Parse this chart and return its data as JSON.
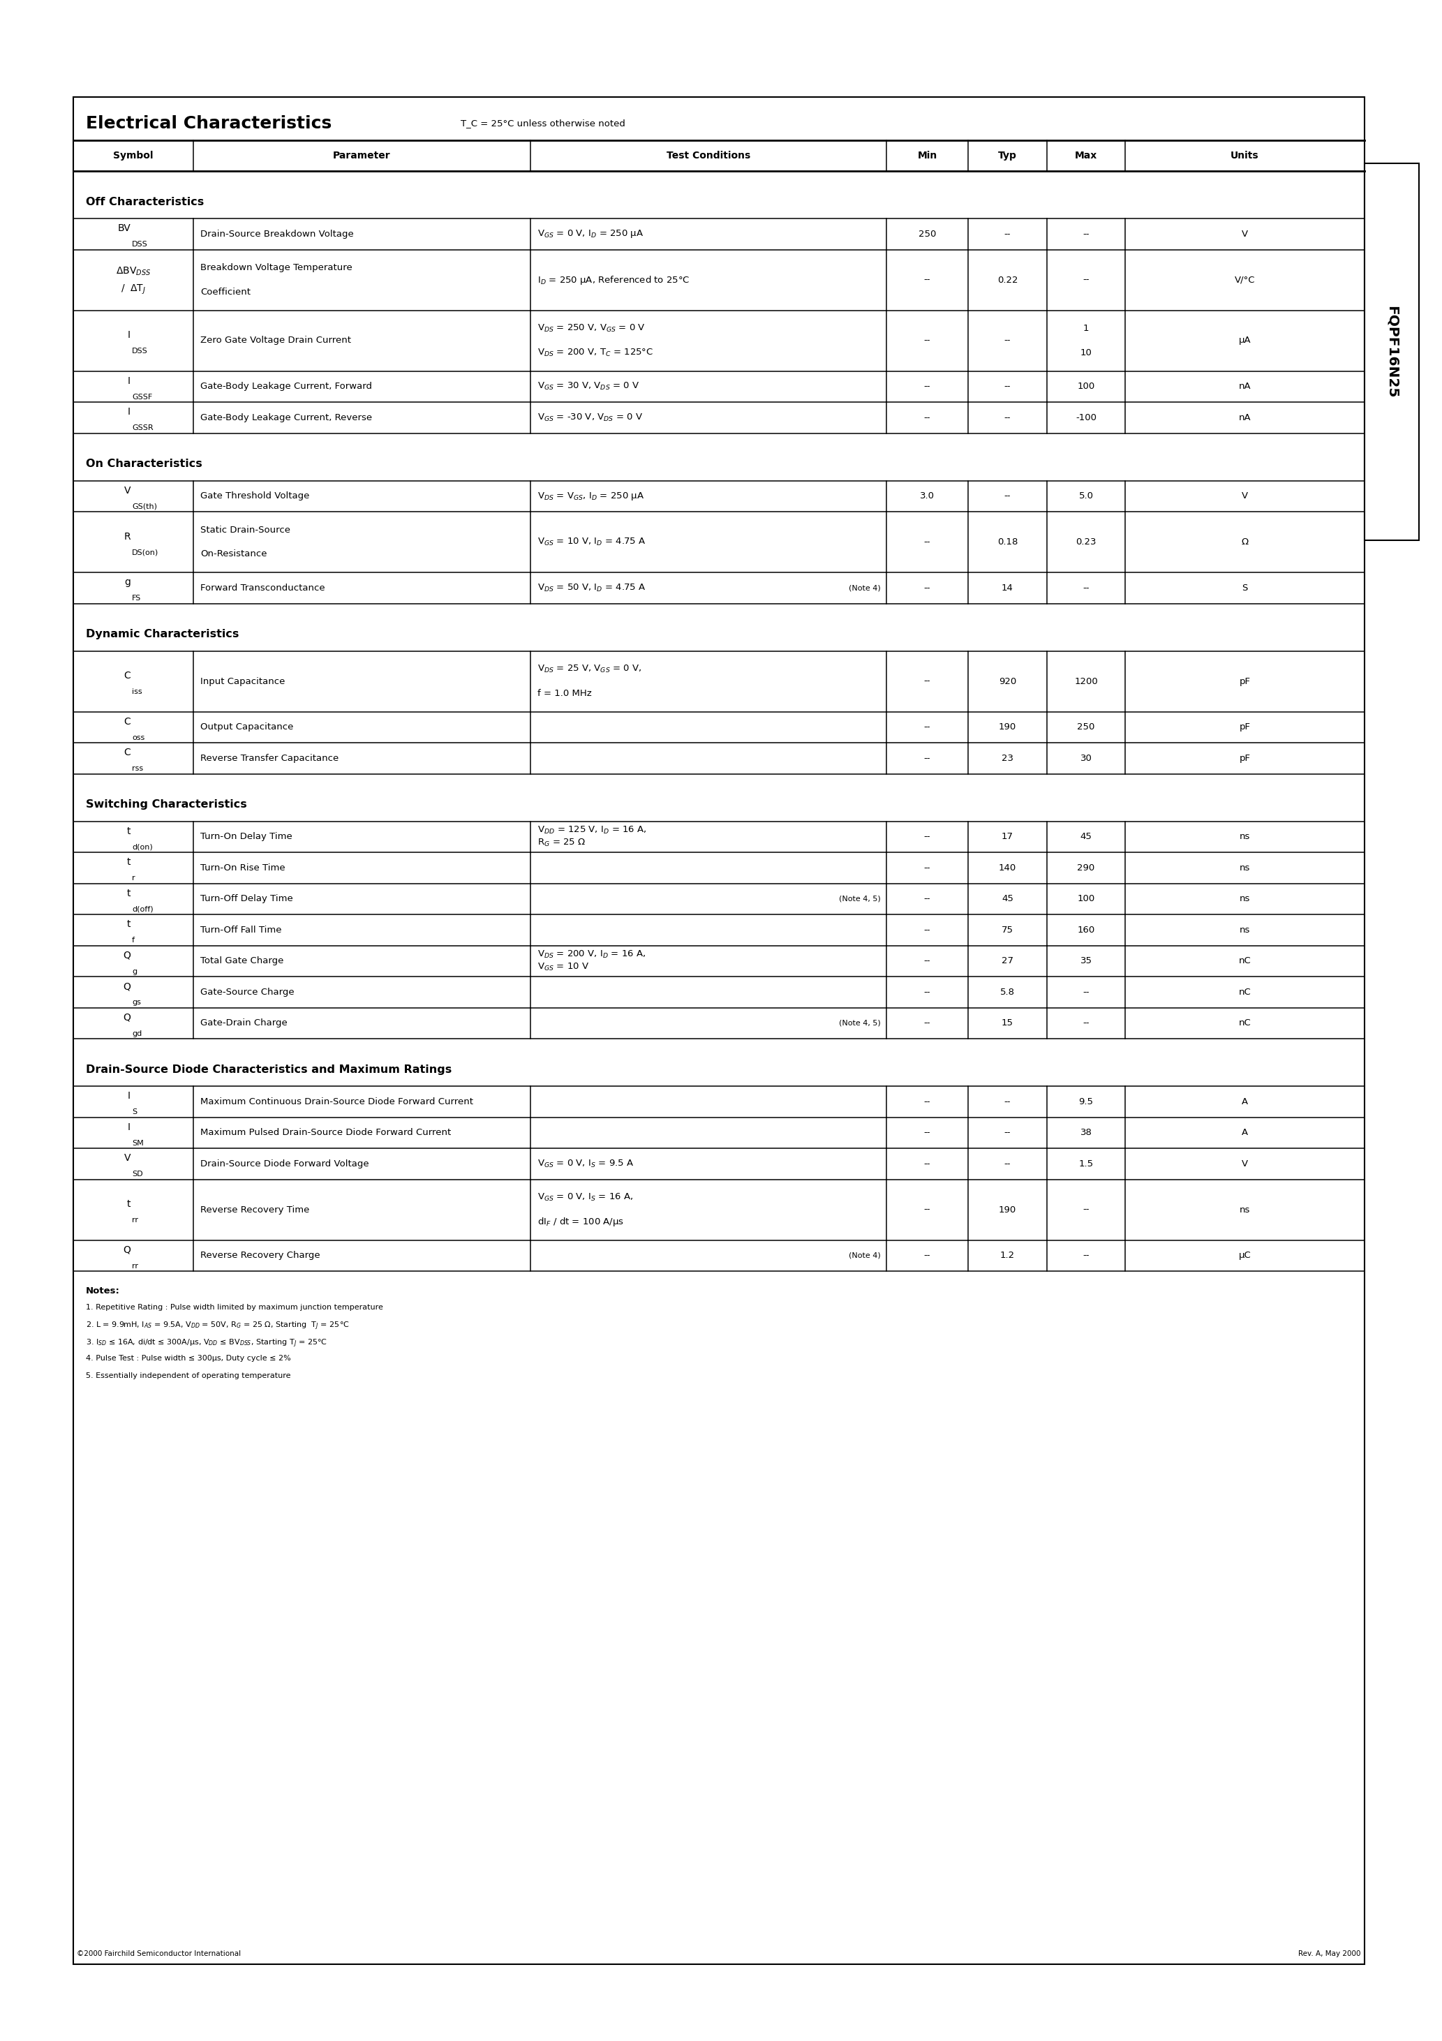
{
  "title": "Electrical Characteristics",
  "title_note": "T_C = 25°C unless otherwise noted",
  "part_number": "FQPF16N25",
  "bg_color": "#ffffff",
  "sections": [
    {
      "section_title": "Off Characteristics",
      "rows": [
        {
          "sym_main": "BV",
          "sym_sub": "DSS",
          "sym_extra": "",
          "parameter": "Drain-Source Breakdown Voltage",
          "cond1": "V$_{GS}$ = 0 V, I$_D$ = 250 μA",
          "cond2": "",
          "note": "",
          "min": "250",
          "typ": "--",
          "max": "--",
          "units": "V",
          "tall": false
        },
        {
          "sym_main": "ΔBV",
          "sym_sub": "DSS",
          "sym_extra": "/  ΔT$_J$",
          "parameter": "Breakdown Voltage Temperature\nCoefficient",
          "cond1": "I$_D$ = 250 μA, Referenced to 25°C",
          "cond2": "",
          "note": "",
          "min": "--",
          "typ": "0.22",
          "max": "--",
          "units": "V/°C",
          "tall": true
        },
        {
          "sym_main": "I",
          "sym_sub": "DSS",
          "sym_extra": "",
          "parameter": "Zero Gate Voltage Drain Current",
          "cond1": "V$_{DS}$ = 250 V, V$_{GS}$ = 0 V",
          "cond2": "V$_{DS}$ = 200 V, T$_C$ = 125°C",
          "note": "",
          "min": "--",
          "typ": "--",
          "max": "1\n10",
          "units": "μA",
          "tall": true
        },
        {
          "sym_main": "I",
          "sym_sub": "GSSF",
          "sym_extra": "",
          "parameter": "Gate-Body Leakage Current, Forward",
          "cond1": "V$_{GS}$ = 30 V, V$_{DS}$ = 0 V",
          "cond2": "",
          "note": "",
          "min": "--",
          "typ": "--",
          "max": "100",
          "units": "nA",
          "tall": false
        },
        {
          "sym_main": "I",
          "sym_sub": "GSSR",
          "sym_extra": "",
          "parameter": "Gate-Body Leakage Current, Reverse",
          "cond1": "V$_{GS}$ = -30 V, V$_{DS}$ = 0 V",
          "cond2": "",
          "note": "",
          "min": "--",
          "typ": "--",
          "max": "-100",
          "units": "nA",
          "tall": false
        }
      ]
    },
    {
      "section_title": "On Characteristics",
      "rows": [
        {
          "sym_main": "V",
          "sym_sub": "GS(th)",
          "sym_extra": "",
          "parameter": "Gate Threshold Voltage",
          "cond1": "V$_{DS}$ = V$_{GS}$, I$_D$ = 250 μA",
          "cond2": "",
          "note": "",
          "min": "3.0",
          "typ": "--",
          "max": "5.0",
          "units": "V",
          "tall": false
        },
        {
          "sym_main": "R",
          "sym_sub": "DS(on)",
          "sym_extra": "",
          "parameter": "Static Drain-Source\nOn-Resistance",
          "cond1": "V$_{GS}$ = 10 V, I$_D$ = 4.75 A",
          "cond2": "",
          "note": "",
          "min": "--",
          "typ": "0.18",
          "max": "0.23",
          "units": "Ω",
          "tall": true
        },
        {
          "sym_main": "g",
          "sym_sub": "FS",
          "sym_extra": "",
          "parameter": "Forward Transconductance",
          "cond1": "V$_{DS}$ = 50 V, I$_D$ = 4.75 A",
          "cond2": "",
          "note": "(Note 4)",
          "min": "--",
          "typ": "14",
          "max": "--",
          "units": "S",
          "tall": false
        }
      ]
    },
    {
      "section_title": "Dynamic Characteristics",
      "rows": [
        {
          "sym_main": "C",
          "sym_sub": "iss",
          "sym_extra": "",
          "parameter": "Input Capacitance",
          "cond1": "V$_{DS}$ = 25 V, V$_{GS}$ = 0 V,",
          "cond2": "f = 1.0 MHz",
          "note": "",
          "min": "--",
          "typ": "920",
          "max": "1200",
          "units": "pF",
          "tall": true
        },
        {
          "sym_main": "C",
          "sym_sub": "oss",
          "sym_extra": "",
          "parameter": "Output Capacitance",
          "cond1": "",
          "cond2": "",
          "note": "",
          "min": "--",
          "typ": "190",
          "max": "250",
          "units": "pF",
          "tall": false
        },
        {
          "sym_main": "C",
          "sym_sub": "rss",
          "sym_extra": "",
          "parameter": "Reverse Transfer Capacitance",
          "cond1": "",
          "cond2": "",
          "note": "",
          "min": "--",
          "typ": "23",
          "max": "30",
          "units": "pF",
          "tall": false
        }
      ]
    },
    {
      "section_title": "Switching Characteristics",
      "rows": [
        {
          "sym_main": "t",
          "sym_sub": "d(on)",
          "sym_extra": "",
          "parameter": "Turn-On Delay Time",
          "cond1": "V$_{DD}$ = 125 V, I$_D$ = 16 A,",
          "cond2": "R$_G$ = 25 Ω",
          "note": "",
          "min": "--",
          "typ": "17",
          "max": "45",
          "units": "ns",
          "tall": false
        },
        {
          "sym_main": "t",
          "sym_sub": "r",
          "sym_extra": "",
          "parameter": "Turn-On Rise Time",
          "cond1": "",
          "cond2": "",
          "note": "",
          "min": "--",
          "typ": "140",
          "max": "290",
          "units": "ns",
          "tall": false
        },
        {
          "sym_main": "t",
          "sym_sub": "d(off)",
          "sym_extra": "",
          "parameter": "Turn-Off Delay Time",
          "cond1": "",
          "cond2": "",
          "note": "(Note 4, 5)",
          "min": "--",
          "typ": "45",
          "max": "100",
          "units": "ns",
          "tall": false
        },
        {
          "sym_main": "t",
          "sym_sub": "f",
          "sym_extra": "",
          "parameter": "Turn-Off Fall Time",
          "cond1": "",
          "cond2": "",
          "note": "",
          "min": "--",
          "typ": "75",
          "max": "160",
          "units": "ns",
          "tall": false
        },
        {
          "sym_main": "Q",
          "sym_sub": "g",
          "sym_extra": "",
          "parameter": "Total Gate Charge",
          "cond1": "V$_{DS}$ = 200 V, I$_D$ = 16 A,",
          "cond2": "V$_{GS}$ = 10 V",
          "note": "",
          "min": "--",
          "typ": "27",
          "max": "35",
          "units": "nC",
          "tall": false
        },
        {
          "sym_main": "Q",
          "sym_sub": "gs",
          "sym_extra": "",
          "parameter": "Gate-Source Charge",
          "cond1": "",
          "cond2": "",
          "note": "",
          "min": "--",
          "typ": "5.8",
          "max": "--",
          "units": "nC",
          "tall": false
        },
        {
          "sym_main": "Q",
          "sym_sub": "gd",
          "sym_extra": "",
          "parameter": "Gate-Drain Charge",
          "cond1": "",
          "cond2": "",
          "note": "(Note 4, 5)",
          "min": "--",
          "typ": "15",
          "max": "--",
          "units": "nC",
          "tall": false
        }
      ]
    },
    {
      "section_title": "Drain-Source Diode Characteristics and Maximum Ratings",
      "rows": [
        {
          "sym_main": "I",
          "sym_sub": "S",
          "sym_extra": "",
          "parameter": "Maximum Continuous Drain-Source Diode Forward Current",
          "cond1": "",
          "cond2": "",
          "note": "",
          "min": "--",
          "typ": "--",
          "max": "9.5",
          "units": "A",
          "tall": false
        },
        {
          "sym_main": "I",
          "sym_sub": "SM",
          "sym_extra": "",
          "parameter": "Maximum Pulsed Drain-Source Diode Forward Current",
          "cond1": "",
          "cond2": "",
          "note": "",
          "min": "--",
          "typ": "--",
          "max": "38",
          "units": "A",
          "tall": false
        },
        {
          "sym_main": "V",
          "sym_sub": "SD",
          "sym_extra": "",
          "parameter": "Drain-Source Diode Forward Voltage",
          "cond1": "V$_{GS}$ = 0 V, I$_S$ = 9.5 A",
          "cond2": "",
          "note": "",
          "min": "--",
          "typ": "--",
          "max": "1.5",
          "units": "V",
          "tall": false
        },
        {
          "sym_main": "t",
          "sym_sub": "rr",
          "sym_extra": "",
          "parameter": "Reverse Recovery Time",
          "cond1": "V$_{GS}$ = 0 V, I$_S$ = 16 A,",
          "cond2": "dI$_F$ / dt = 100 A/μs",
          "note": "",
          "min": "--",
          "typ": "190",
          "max": "--",
          "units": "ns",
          "tall": true
        },
        {
          "sym_main": "Q",
          "sym_sub": "rr",
          "sym_extra": "",
          "parameter": "Reverse Recovery Charge",
          "cond1": "",
          "cond2": "",
          "note": "(Note 4)",
          "min": "--",
          "typ": "1.2",
          "max": "--",
          "units": "μC",
          "tall": false
        }
      ]
    }
  ],
  "notes": [
    "Notes:",
    "1. Repetitive Rating : Pulse width limited by maximum junction temperature",
    "2. L = 9.9mH, I$_{AS}$ = 9.5A, V$_{DD}$ = 50V, R$_G$ = 25 Ω, Starting  T$_J$ = 25°C",
    "3. I$_{SD}$ ≤ 16A, di/dt ≤ 300A/μs, V$_{DD}$ ≤ BV$_{DSS}$, Starting T$_J$ = 25°C",
    "4. Pulse Test : Pulse width ≤ 300μs, Duty cycle ≤ 2%",
    "5. Essentially independent of operating temperature"
  ],
  "footer_left": "©2000 Fairchild Semiconductor International",
  "footer_right": "Rev. A, May 2000"
}
